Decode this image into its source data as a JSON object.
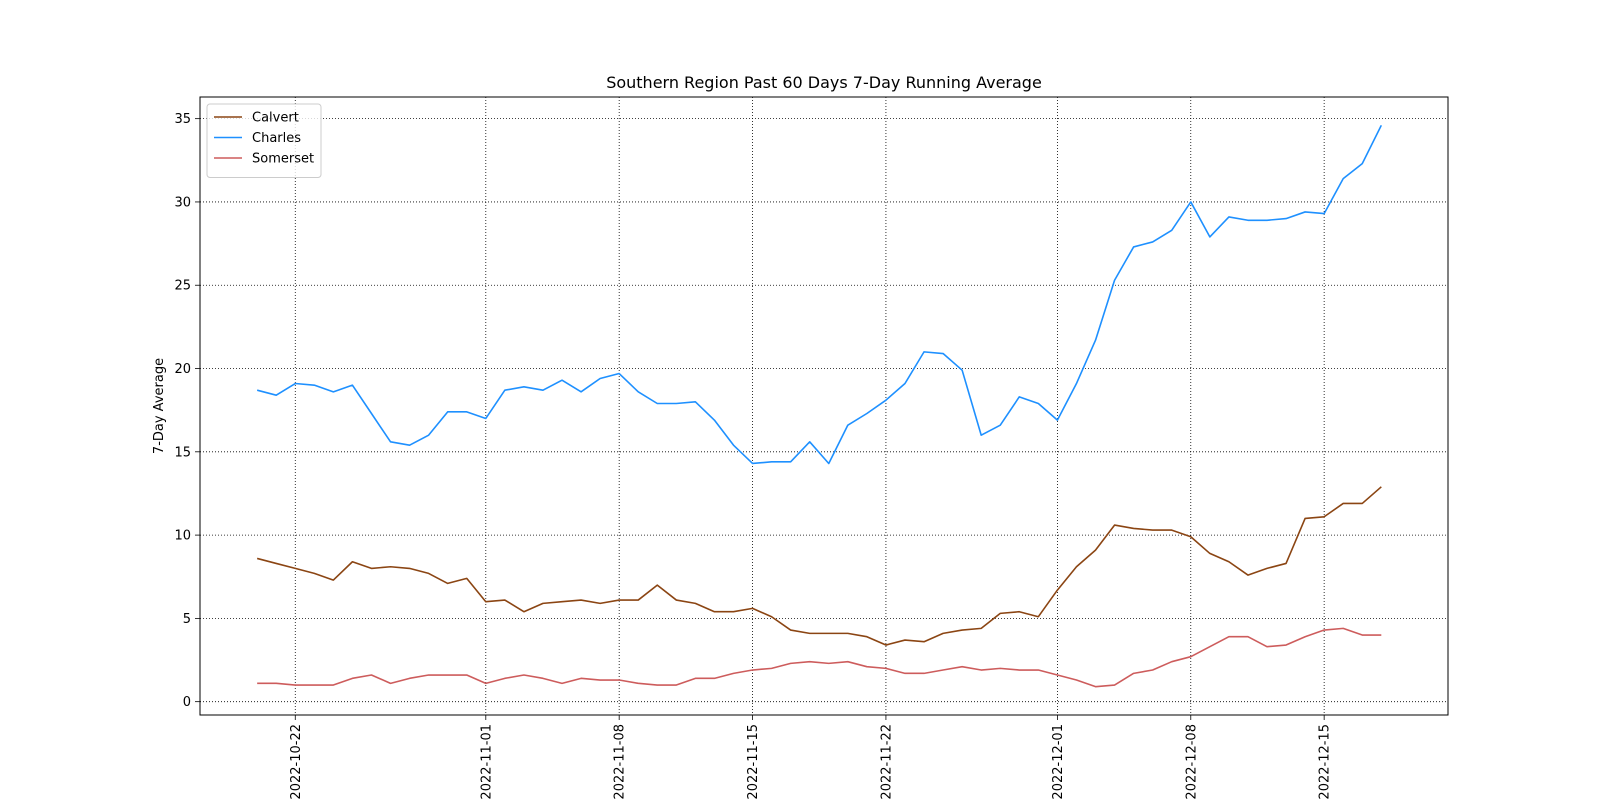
{
  "chart_data": {
    "type": "line",
    "title": "Southern Region Past 60 Days 7-Day Running Average",
    "xlabel": "",
    "ylabel": "7-Day Average",
    "x_start": "2022-10-20",
    "x_range_day_offset": [
      -3,
      62.5
    ],
    "ylim": [
      -0.8,
      36.3
    ],
    "grid": true,
    "legend_position": "upper-left",
    "xticks": [
      {
        "label": "2022-10-22",
        "day": 2
      },
      {
        "label": "2022-11-01",
        "day": 12
      },
      {
        "label": "2022-11-08",
        "day": 19
      },
      {
        "label": "2022-11-15",
        "day": 26
      },
      {
        "label": "2022-11-22",
        "day": 33
      },
      {
        "label": "2022-12-01",
        "day": 42
      },
      {
        "label": "2022-12-08",
        "day": 49
      },
      {
        "label": "2022-12-15",
        "day": 56
      }
    ],
    "yticks": [
      {
        "label": "0",
        "value": 0
      },
      {
        "label": "5",
        "value": 5
      },
      {
        "label": "10",
        "value": 10
      },
      {
        "label": "15",
        "value": 15
      },
      {
        "label": "20",
        "value": 20
      },
      {
        "label": "25",
        "value": 25
      },
      {
        "label": "30",
        "value": 30
      },
      {
        "label": "35",
        "value": 35
      }
    ],
    "series": [
      {
        "name": "Calvert",
        "color": "#8B4513",
        "values": [
          8.6,
          8.3,
          8.0,
          7.7,
          7.3,
          8.4,
          8.0,
          8.1,
          8.0,
          7.7,
          7.1,
          7.4,
          6.0,
          6.1,
          5.4,
          5.9,
          6.0,
          6.1,
          5.9,
          6.1,
          6.1,
          7.0,
          6.1,
          5.9,
          5.4,
          5.4,
          5.6,
          5.1,
          4.3,
          4.1,
          4.1,
          4.1,
          3.9,
          3.4,
          3.7,
          3.6,
          4.1,
          4.3,
          4.4,
          5.3,
          5.4,
          5.1,
          6.7,
          8.1,
          9.1,
          10.6,
          10.4,
          10.3,
          10.3,
          9.9,
          8.9,
          8.4,
          7.6,
          8.0,
          8.3,
          11.0,
          11.1,
          11.9,
          11.9,
          12.9
        ]
      },
      {
        "name": "Charles",
        "color": "#1E90FF",
        "values": [
          18.7,
          18.4,
          19.1,
          19.0,
          18.6,
          19.0,
          17.3,
          15.6,
          15.4,
          16.0,
          17.4,
          17.4,
          17.0,
          18.7,
          18.9,
          18.7,
          19.3,
          18.6,
          19.4,
          19.7,
          18.6,
          17.9,
          17.9,
          18.0,
          16.9,
          15.4,
          14.3,
          14.4,
          14.4,
          15.6,
          14.3,
          16.6,
          17.3,
          18.1,
          19.1,
          21.0,
          20.9,
          19.9,
          16.0,
          16.6,
          18.3,
          17.9,
          16.9,
          19.1,
          21.7,
          25.3,
          27.3,
          27.6,
          28.3,
          30.0,
          27.9,
          29.1,
          28.9,
          28.9,
          29.0,
          29.4,
          29.3,
          31.4,
          32.3,
          34.6
        ]
      },
      {
        "name": "Somerset",
        "color": "#CD5C5C",
        "values": [
          1.1,
          1.1,
          1.0,
          1.0,
          1.0,
          1.4,
          1.6,
          1.1,
          1.4,
          1.6,
          1.6,
          1.6,
          1.1,
          1.4,
          1.6,
          1.4,
          1.1,
          1.4,
          1.3,
          1.3,
          1.1,
          1.0,
          1.0,
          1.4,
          1.4,
          1.7,
          1.9,
          2.0,
          2.3,
          2.4,
          2.3,
          2.4,
          2.1,
          2.0,
          1.7,
          1.7,
          1.9,
          2.1,
          1.9,
          2.0,
          1.9,
          1.9,
          1.6,
          1.3,
          0.9,
          1.0,
          1.7,
          1.9,
          2.4,
          2.7,
          3.3,
          3.9,
          3.9,
          3.3,
          3.4,
          3.9,
          4.3,
          4.4,
          4.0,
          4.0
        ]
      }
    ]
  }
}
